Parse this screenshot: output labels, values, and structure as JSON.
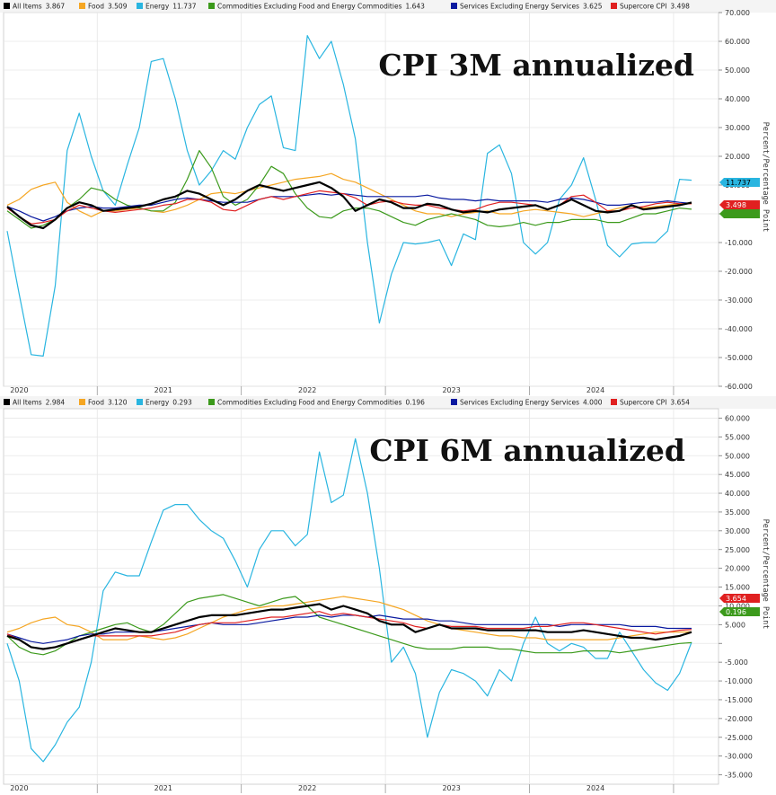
{
  "chart_data": [
    {
      "type": "line",
      "title": "CPI 3M annualized",
      "ylabel": "Percent/Percentage Point",
      "ylim": [
        -60,
        70
      ],
      "yticks": [
        "70.000",
        "60.000",
        "50.000",
        "40.000",
        "30.000",
        "20.000",
        "10.000",
        "",
        "-10.000",
        "-20.000",
        "-30.000",
        "-40.000",
        "-50.000",
        "-60.000"
      ],
      "ytick_values": [
        70,
        60,
        50,
        40,
        30,
        20,
        10,
        0,
        -10,
        -20,
        -30,
        -40,
        -50,
        -60
      ],
      "x_labels": [
        "2020",
        "2021",
        "2022",
        "2023",
        "2024"
      ],
      "x_label_months": [
        0,
        12,
        24,
        36,
        48
      ],
      "grid": true,
      "legend_position": "top",
      "tag_values": [
        "11.737",
        "3.498",
        ""
      ],
      "series": [
        {
          "name": "All Items",
          "legend_value": "3.867",
          "color": "#000000",
          "width": 2.2,
          "values": [
            2.5,
            -1,
            -4,
            -5,
            -2,
            2,
            4,
            3,
            1,
            1.5,
            2,
            2.5,
            3.5,
            5,
            6,
            8,
            7,
            5,
            3,
            5,
            8,
            10,
            9,
            8,
            9,
            10,
            11,
            9,
            6,
            1,
            3,
            5,
            4,
            2,
            2,
            3.5,
            3,
            1.5,
            0.5,
            1,
            0.5,
            1.5,
            2,
            2.5,
            3,
            1.5,
            3,
            5,
            3,
            1,
            0.5,
            1,
            3,
            1.5,
            2,
            2.5,
            3,
            3.9
          ]
        },
        {
          "name": "Food",
          "legend_value": "3.509",
          "color": "#f5a623",
          "width": 1.2,
          "values": [
            3,
            5,
            8.5,
            10,
            11,
            4,
            1,
            -1,
            1,
            1,
            1.5,
            2,
            1,
            0.5,
            1.5,
            3,
            5,
            7,
            7.5,
            7,
            8,
            9,
            10,
            11,
            12,
            12.5,
            13,
            14,
            12,
            11,
            9,
            7,
            5,
            3,
            1,
            0,
            0,
            -1,
            0,
            0.5,
            1,
            0,
            0,
            1,
            1.5,
            1,
            0.5,
            0,
            -1,
            0,
            1,
            2,
            3,
            2,
            2.5,
            3,
            3.5,
            3.5
          ]
        },
        {
          "name": "Energy",
          "legend_value": "11.737",
          "color": "#29b5e0",
          "width": 1.2,
          "values": [
            -6,
            -28,
            -49,
            -49.5,
            -25,
            22,
            35,
            20,
            8,
            3,
            17,
            30,
            53,
            54,
            40,
            22,
            10,
            15,
            22,
            19,
            30,
            38,
            41,
            23,
            22,
            62,
            54,
            60,
            45,
            26,
            -10,
            -38,
            -21,
            -10,
            -10.5,
            -10,
            -9,
            -18,
            -7,
            -9,
            21,
            24,
            14,
            -10,
            -14,
            -10,
            5,
            10,
            19.5,
            5,
            -11,
            -15,
            -10.5,
            -10,
            -10,
            -6,
            12,
            11.7
          ]
        },
        {
          "name": "Commodities Excluding Food and Energy Commodities",
          "legend_value": "1.643",
          "color": "#3c9a1c",
          "width": 1.2,
          "values": [
            1,
            -2,
            -5,
            -4,
            -2,
            2,
            5,
            9,
            8,
            5,
            3,
            2,
            1,
            1,
            4,
            12,
            22,
            16,
            6,
            3,
            5,
            10,
            16.5,
            14,
            7,
            2,
            -1,
            -1.5,
            1,
            2,
            2,
            1,
            -1,
            -3,
            -4,
            -2,
            -1,
            0,
            -1,
            -2,
            -4,
            -4.5,
            -4,
            -3,
            -4,
            -3,
            -3,
            -2,
            -2,
            -2,
            -3,
            -3,
            -1.5,
            0,
            0,
            1,
            2,
            1.6
          ]
        },
        {
          "name": "Services Excluding Energy Services",
          "legend_value": "3.625",
          "color": "#0a1aa0",
          "width": 1.2,
          "values": [
            2.5,
            1,
            -1,
            -2.5,
            -1,
            1,
            2,
            2.5,
            2,
            2,
            2.5,
            3,
            3,
            4,
            5,
            5.5,
            5,
            4.5,
            4,
            4,
            4,
            5,
            6,
            6,
            6,
            6.5,
            7,
            6.5,
            7,
            6.5,
            6,
            6,
            6,
            6,
            6,
            6.5,
            5.5,
            5,
            5,
            4.5,
            5,
            4.5,
            4.5,
            4.5,
            4.5,
            4,
            5,
            5.5,
            5,
            4,
            3,
            3,
            3.5,
            4,
            4,
            4.5,
            4,
            3.6
          ]
        },
        {
          "name": "Supercore CPI",
          "legend_value": "3.498",
          "color": "#e02020",
          "width": 1.2,
          "values": [
            2,
            -1,
            -3.5,
            -3,
            -2,
            1,
            3,
            2,
            1,
            0.5,
            1,
            1.5,
            2,
            3,
            3.5,
            5,
            5,
            4,
            1.5,
            1,
            3,
            5,
            6,
            5,
            6,
            7,
            8,
            7.5,
            7,
            5.5,
            3,
            4,
            4.5,
            3.5,
            3,
            3,
            2,
            1.5,
            1,
            1.5,
            3,
            4,
            4,
            3.5,
            3,
            1.5,
            3,
            6,
            6.5,
            4,
            1,
            1,
            2,
            2.5,
            3.5,
            4,
            3.5,
            3.5
          ]
        }
      ]
    },
    {
      "type": "line",
      "title": "CPI 6M annualized",
      "ylabel": "Percent/Percentage Point",
      "ylim": [
        -37.5,
        62.5
      ],
      "yticks": [
        "60.000",
        "55.000",
        "50.000",
        "45.000",
        "40.000",
        "35.000",
        "30.000",
        "25.000",
        "20.000",
        "15.000",
        "10.000",
        "5.000",
        "",
        "-5.000",
        "-10.000",
        "-15.000",
        "-20.000",
        "-25.000",
        "-30.000",
        "-35.000"
      ],
      "ytick_values": [
        60,
        55,
        50,
        45,
        40,
        35,
        30,
        25,
        20,
        15,
        10,
        5,
        0,
        -5,
        -10,
        -15,
        -20,
        -25,
        -30,
        -35
      ],
      "x_labels": [
        "2020",
        "2021",
        "2022",
        "2023",
        "2024"
      ],
      "x_label_months": [
        0,
        12,
        24,
        36,
        48
      ],
      "grid": true,
      "legend_position": "top",
      "tag_values": [
        "3.654",
        "0.196"
      ],
      "series": [
        {
          "name": "All Items",
          "legend_value": "2.984",
          "color": "#000000",
          "width": 2.2,
          "values": [
            2,
            1,
            -1,
            -1.5,
            -1,
            0,
            1,
            2,
            3,
            4,
            3.5,
            3,
            3,
            4,
            5,
            6,
            7,
            7.5,
            7.5,
            7.5,
            8,
            8.5,
            9,
            9,
            9.5,
            10,
            10.5,
            9,
            10,
            9,
            8,
            6,
            5,
            5,
            3,
            4,
            5,
            4,
            4,
            4,
            3.5,
            3.5,
            3.5,
            3.5,
            3.5,
            3,
            3,
            3,
            3.5,
            3,
            2.5,
            2,
            1.5,
            1.5,
            1,
            1.5,
            2,
            3
          ]
        },
        {
          "name": "Food",
          "legend_value": "3.120",
          "color": "#f5a623",
          "width": 1.2,
          "values": [
            3,
            4,
            5.5,
            6.5,
            7,
            5,
            4.5,
            3,
            1,
            1,
            1,
            2,
            1.5,
            1,
            1.5,
            2.5,
            4,
            5.5,
            7,
            8,
            9,
            9.5,
            10,
            10,
            10.5,
            11,
            11.5,
            12,
            12.5,
            12,
            11.5,
            11,
            10,
            9,
            7.5,
            6,
            5,
            4,
            3.5,
            3,
            2.5,
            2,
            2,
            1.5,
            1.5,
            1,
            1,
            1,
            1,
            1,
            1,
            1.5,
            2,
            2.5,
            3,
            3,
            3,
            3.1
          ]
        },
        {
          "name": "Energy",
          "legend_value": "0.293",
          "color": "#29b5e0",
          "width": 1.2,
          "values": [
            0,
            -10,
            -28,
            -31.5,
            -27,
            -21,
            -17,
            -5,
            14,
            19,
            18,
            18,
            27,
            35.5,
            37,
            37,
            33,
            30,
            28,
            22,
            15,
            25,
            30,
            30,
            26,
            29,
            51,
            37.5,
            39.5,
            54.5,
            40,
            20,
            -5,
            -1,
            -8,
            -25,
            -13,
            -7,
            -8,
            -10,
            -14,
            -7,
            -10,
            0,
            7,
            0,
            -2,
            0,
            -1,
            -4,
            -4,
            3,
            -2,
            -7,
            -10.5,
            -12.5,
            -8,
            0.3
          ]
        },
        {
          "name": "Commodities Excluding Food and Energy Commodities",
          "legend_value": "0.196",
          "color": "#3c9a1c",
          "width": 1.2,
          "values": [
            2,
            -1,
            -2.5,
            -3,
            -2,
            0,
            2,
            3,
            4,
            5,
            5.5,
            4,
            3,
            5,
            8,
            11,
            12,
            12.5,
            13,
            12,
            11,
            10,
            11,
            12,
            12.5,
            10,
            7,
            6,
            5,
            4,
            3,
            2,
            1,
            0,
            -1,
            -1.5,
            -1.5,
            -1.5,
            -1,
            -1,
            -1,
            -1.5,
            -1.5,
            -2,
            -2.5,
            -2.5,
            -2.5,
            -2.5,
            -2,
            -2,
            -2,
            -2.5,
            -2,
            -1.5,
            -1,
            -0.5,
            0,
            0.2
          ]
        },
        {
          "name": "Services Excluding Energy Services",
          "legend_value": "4.000",
          "color": "#0a1aa0",
          "width": 1.2,
          "values": [
            2.5,
            1.5,
            0.5,
            0,
            0.5,
            1,
            2,
            2.5,
            2.5,
            3,
            3,
            3,
            3,
            3.5,
            4,
            4.5,
            5,
            5.5,
            5,
            5,
            5,
            5.5,
            6,
            6.5,
            7,
            7,
            7.5,
            7,
            7.5,
            7.5,
            7,
            7.5,
            7,
            6.5,
            6.5,
            6.5,
            6,
            6,
            5.5,
            5,
            5,
            5,
            5,
            5,
            5,
            5,
            4.5,
            5,
            5,
            5,
            5,
            5,
            4.5,
            4.5,
            4.5,
            4,
            4,
            4
          ]
        },
        {
          "name": "Supercore CPI",
          "legend_value": "3.654",
          "color": "#e02020",
          "width": 1.2,
          "values": [
            2.5,
            1,
            -1,
            -1.5,
            -1,
            0,
            1,
            2,
            2,
            2,
            2,
            2,
            2,
            2.5,
            3,
            4,
            5,
            5.5,
            5.5,
            5.5,
            6,
            6.5,
            7,
            7,
            7.5,
            8,
            8.5,
            7.5,
            8,
            7.5,
            7,
            6.5,
            6,
            5.5,
            4.5,
            4,
            5,
            4.5,
            4.5,
            4.5,
            4,
            4,
            4,
            4,
            4.5,
            4.5,
            5,
            5.5,
            5.5,
            5,
            4.5,
            4,
            3.5,
            3,
            2.5,
            3,
            3.5,
            3.7
          ]
        }
      ]
    }
  ]
}
